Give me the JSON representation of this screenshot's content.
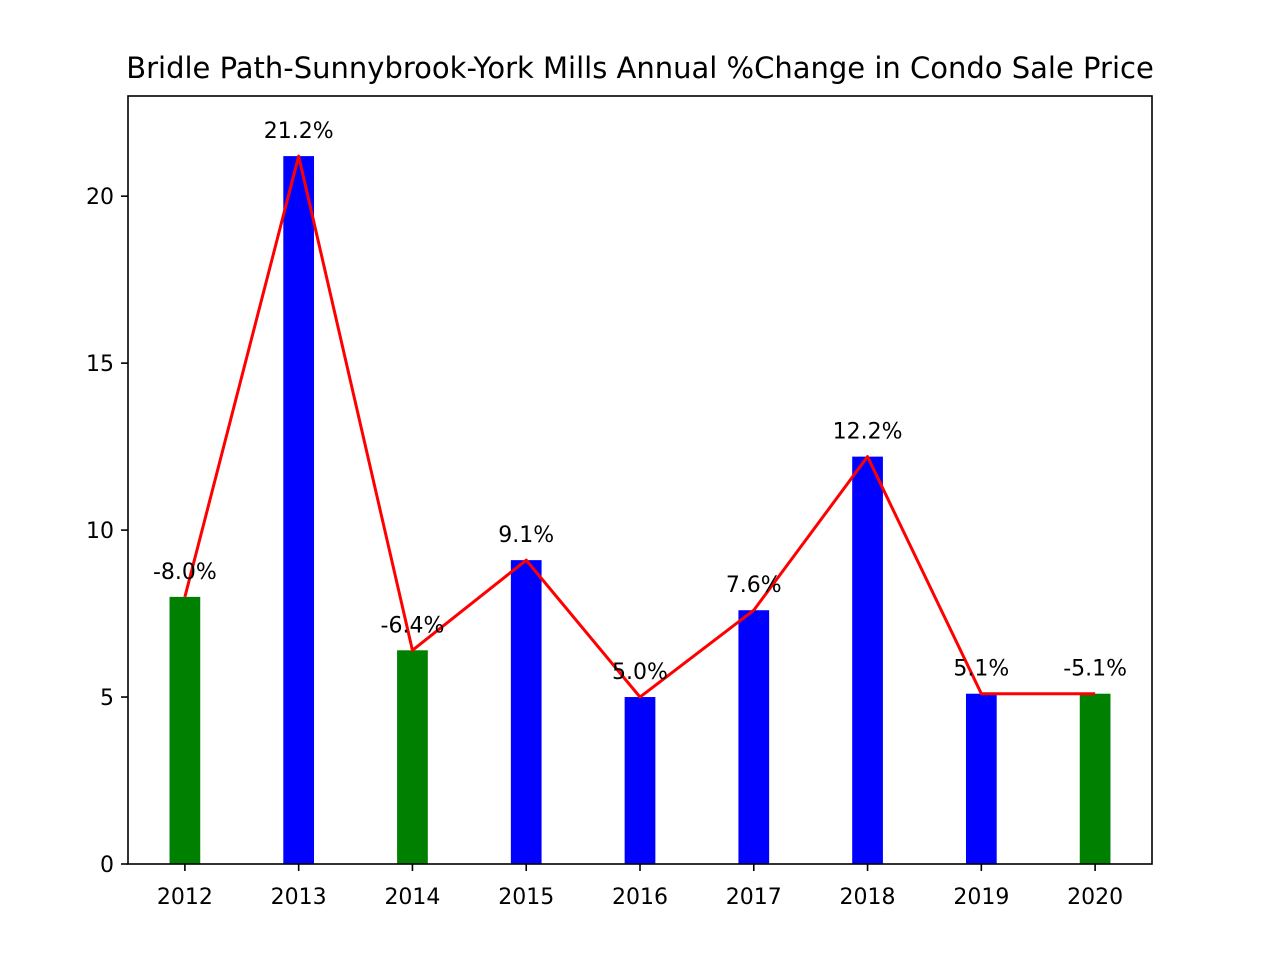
{
  "chart_data": {
    "type": "bar",
    "title": "Bridle Path-Sunnybrook-York Mills Annual %Change in Condo Sale Price",
    "xlabel": "",
    "ylabel": "",
    "categories": [
      "2012",
      "2013",
      "2014",
      "2015",
      "2016",
      "2017",
      "2018",
      "2019",
      "2020"
    ],
    "values": [
      8.0,
      21.2,
      6.4,
      9.1,
      5.0,
      7.6,
      12.2,
      5.1,
      5.1
    ],
    "signed_values": [
      -8.0,
      21.2,
      -6.4,
      9.1,
      5.0,
      7.6,
      12.2,
      5.1,
      -5.1
    ],
    "data_labels": [
      "-8.0%",
      "21.2%",
      "-6.4%",
      "9.1%",
      "5.0%",
      "7.6%",
      "12.2%",
      "5.1%",
      "-5.1%"
    ],
    "ylim": [
      0,
      23
    ],
    "yticks": [
      0,
      5,
      10,
      15,
      20
    ],
    "grid": false,
    "colors": {
      "positive": "#0000ff",
      "negative": "#008000",
      "line": "#ff0000"
    },
    "line_overlay": true
  }
}
